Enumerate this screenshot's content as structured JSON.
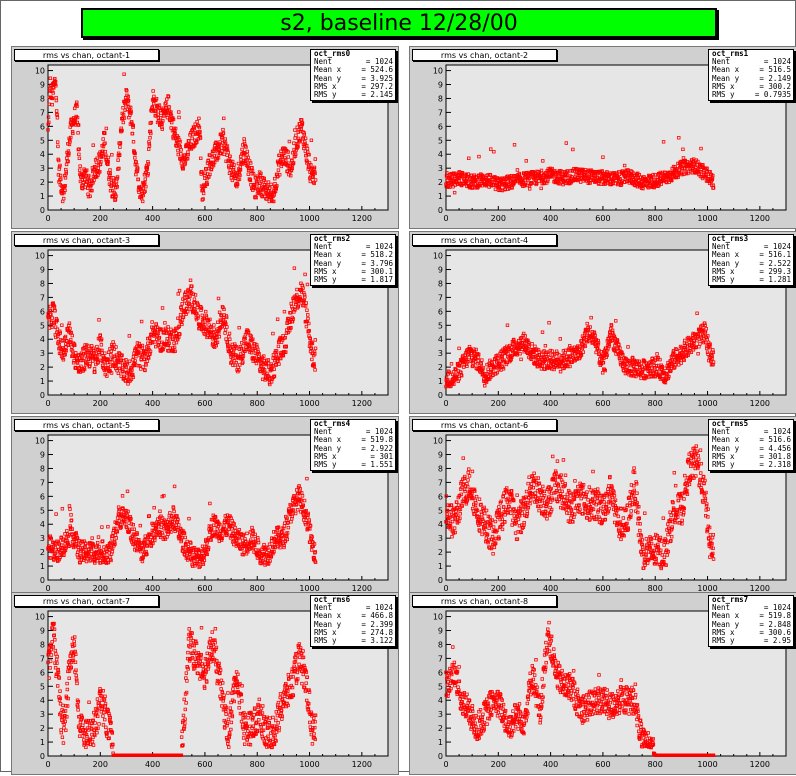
{
  "canvas_title": "s2, baseline 12/28/00",
  "marker_color": "#ff0000",
  "title_color": "#00ff00",
  "chart_data": [
    {
      "type": "scatter",
      "title": "rms vs chan, octant-1",
      "stats": {
        "name": "oct_rms0",
        "Nent": "1024",
        "Mean x": "524.6",
        "Mean y": "3.925",
        "RMS x": "297.2",
        "RMS y": "2.145"
      },
      "xlim": [
        0,
        1300
      ],
      "ylim": [
        0,
        10.4
      ],
      "xticks": [
        0,
        200,
        400,
        600,
        800,
        1000,
        1200
      ],
      "yticks": [
        0,
        1,
        2,
        3,
        4,
        5,
        6,
        7,
        8,
        9,
        10
      ],
      "anchors": [
        [
          0,
          5.5
        ],
        [
          8,
          9
        ],
        [
          15,
          8
        ],
        [
          30,
          9.5
        ],
        [
          40,
          3
        ],
        [
          60,
          1
        ],
        [
          75,
          4
        ],
        [
          90,
          6
        ],
        [
          110,
          7
        ],
        [
          125,
          2
        ],
        [
          140,
          2.5
        ],
        [
          160,
          1.5
        ],
        [
          180,
          3
        ],
        [
          200,
          3.5
        ],
        [
          215,
          5
        ],
        [
          240,
          2
        ],
        [
          260,
          1
        ],
        [
          280,
          6
        ],
        [
          300,
          8
        ],
        [
          320,
          6.5
        ],
        [
          340,
          2.5
        ],
        [
          360,
          1
        ],
        [
          380,
          3
        ],
        [
          400,
          8
        ],
        [
          420,
          7
        ],
        [
          440,
          6.5
        ],
        [
          460,
          7.5
        ],
        [
          490,
          5
        ],
        [
          520,
          3.5
        ],
        [
          550,
          5
        ],
        [
          580,
          6
        ],
        [
          590,
          1
        ],
        [
          610,
          3
        ],
        [
          640,
          4
        ],
        [
          670,
          5
        ],
        [
          700,
          3
        ],
        [
          720,
          2
        ],
        [
          750,
          4.5
        ],
        [
          770,
          3
        ],
        [
          790,
          1.5
        ],
        [
          810,
          2
        ],
        [
          830,
          1.5
        ],
        [
          860,
          1
        ],
        [
          880,
          3
        ],
        [
          900,
          4
        ],
        [
          930,
          3
        ],
        [
          950,
          5
        ],
        [
          970,
          6
        ],
        [
          990,
          4
        ],
        [
          1010,
          2
        ],
        [
          1024,
          3
        ]
      ],
      "noise": 0.8
    },
    {
      "type": "scatter",
      "title": "rms vs chan, octant-2",
      "stats": {
        "name": "oct_rms1",
        "Nent": "1024",
        "Mean x": "516.5",
        "Mean y": "2.149",
        "RMS x": "300.2",
        "RMS y": "0.7935"
      },
      "xlim": [
        0,
        1300
      ],
      "ylim": [
        0,
        10.4
      ],
      "xticks": [
        0,
        200,
        400,
        600,
        800,
        1000,
        1200
      ],
      "yticks": [
        0,
        1,
        2,
        3,
        4,
        5,
        6,
        7,
        8,
        9,
        10
      ],
      "anchors": [
        [
          0,
          2
        ],
        [
          50,
          2.3
        ],
        [
          100,
          2
        ],
        [
          150,
          2.2
        ],
        [
          200,
          1.8
        ],
        [
          250,
          2
        ],
        [
          300,
          2.2
        ],
        [
          350,
          2.3
        ],
        [
          400,
          2.5
        ],
        [
          450,
          2.3
        ],
        [
          500,
          2.5
        ],
        [
          550,
          2.4
        ],
        [
          600,
          2.3
        ],
        [
          650,
          2.2
        ],
        [
          700,
          2.4
        ],
        [
          750,
          2
        ],
        [
          800,
          2.1
        ],
        [
          850,
          2.4
        ],
        [
          900,
          3
        ],
        [
          950,
          3.2
        ],
        [
          1000,
          2.5
        ],
        [
          1024,
          2
        ]
      ],
      "noise": 0.5
    },
    {
      "type": "scatter",
      "title": "rms vs chan, octant-3",
      "stats": {
        "name": "oct_rms2",
        "Nent": "1024",
        "Mean x": "518.2",
        "Mean y": "3.796",
        "RMS x": "300.1",
        "RMS y": "1.817"
      },
      "xlim": [
        0,
        1300
      ],
      "ylim": [
        0,
        10.4
      ],
      "xticks": [
        0,
        200,
        400,
        600,
        800,
        1000,
        1200
      ],
      "yticks": [
        0,
        1,
        2,
        3,
        4,
        5,
        6,
        7,
        8,
        9,
        10
      ],
      "anchors": [
        [
          0,
          5
        ],
        [
          20,
          6
        ],
        [
          40,
          4
        ],
        [
          60,
          3
        ],
        [
          80,
          4.5
        ],
        [
          100,
          3
        ],
        [
          120,
          2
        ],
        [
          150,
          3
        ],
        [
          180,
          2.5
        ],
        [
          200,
          3.5
        ],
        [
          220,
          2
        ],
        [
          250,
          3
        ],
        [
          280,
          2
        ],
        [
          310,
          1.5
        ],
        [
          340,
          3
        ],
        [
          370,
          2.5
        ],
        [
          400,
          4.5
        ],
        [
          430,
          4
        ],
        [
          460,
          4
        ],
        [
          490,
          4
        ],
        [
          520,
          6.5
        ],
        [
          550,
          7
        ],
        [
          580,
          5.5
        ],
        [
          610,
          5
        ],
        [
          640,
          4
        ],
        [
          670,
          6
        ],
        [
          700,
          3
        ],
        [
          730,
          2.5
        ],
        [
          760,
          4
        ],
        [
          790,
          3
        ],
        [
          820,
          2
        ],
        [
          850,
          1.5
        ],
        [
          880,
          3
        ],
        [
          910,
          4
        ],
        [
          940,
          6.5
        ],
        [
          970,
          7.5
        ],
        [
          990,
          5.5
        ],
        [
          1010,
          3
        ],
        [
          1024,
          2.5
        ]
      ],
      "noise": 0.9
    },
    {
      "type": "scatter",
      "title": "rms vs chan, octant-4",
      "stats": {
        "name": "oct_rms3",
        "Nent": "1024",
        "Mean x": "516.1",
        "Mean y": "2.522",
        "RMS x": "299.3",
        "RMS y": "1.281"
      },
      "xlim": [
        0,
        1300
      ],
      "ylim": [
        0,
        10.4
      ],
      "xticks": [
        0,
        200,
        400,
        600,
        800,
        1000,
        1200
      ],
      "yticks": [
        0,
        1,
        2,
        3,
        4,
        5,
        6,
        7,
        8,
        9,
        10
      ],
      "anchors": [
        [
          0,
          1
        ],
        [
          30,
          1.2
        ],
        [
          60,
          2
        ],
        [
          90,
          3
        ],
        [
          120,
          2.5
        ],
        [
          150,
          1.5
        ],
        [
          180,
          2
        ],
        [
          210,
          2.5
        ],
        [
          240,
          3
        ],
        [
          270,
          3.5
        ],
        [
          300,
          3.8
        ],
        [
          330,
          3
        ],
        [
          360,
          2.5
        ],
        [
          390,
          2.5
        ],
        [
          420,
          2.5
        ],
        [
          450,
          2.5
        ],
        [
          480,
          2.8
        ],
        [
          510,
          3
        ],
        [
          540,
          4.5
        ],
        [
          570,
          4
        ],
        [
          600,
          2
        ],
        [
          630,
          4.5
        ],
        [
          660,
          3
        ],
        [
          690,
          2
        ],
        [
          720,
          2
        ],
        [
          750,
          1.8
        ],
        [
          780,
          2
        ],
        [
          810,
          2
        ],
        [
          840,
          1.5
        ],
        [
          870,
          2.5
        ],
        [
          900,
          3
        ],
        [
          930,
          3.5
        ],
        [
          960,
          4
        ],
        [
          990,
          4.5
        ],
        [
          1010,
          3
        ],
        [
          1024,
          2.5
        ]
      ],
      "noise": 0.7
    },
    {
      "type": "scatter",
      "title": "rms vs chan, octant-5",
      "stats": {
        "name": "oct_rms4",
        "Nent": "1024",
        "Mean x": "519.8",
        "Mean y": "2.922",
        "RMS x": "301",
        "RMS y": "1.551"
      },
      "xlim": [
        0,
        1300
      ],
      "ylim": [
        0,
        10.4
      ],
      "xticks": [
        0,
        200,
        400,
        600,
        800,
        1000,
        1200
      ],
      "yticks": [
        0,
        1,
        2,
        3,
        4,
        5,
        6,
        7,
        8,
        9,
        10
      ],
      "anchors": [
        [
          0,
          2.5
        ],
        [
          30,
          2
        ],
        [
          60,
          2.5
        ],
        [
          90,
          3.5
        ],
        [
          120,
          2
        ],
        [
          150,
          2
        ],
        [
          180,
          2
        ],
        [
          210,
          2
        ],
        [
          240,
          2
        ],
        [
          270,
          4.5
        ],
        [
          300,
          4.5
        ],
        [
          330,
          3
        ],
        [
          360,
          2
        ],
        [
          390,
          3
        ],
        [
          420,
          4
        ],
        [
          450,
          3.5
        ],
        [
          480,
          4.5
        ],
        [
          510,
          3
        ],
        [
          540,
          2
        ],
        [
          570,
          1.5
        ],
        [
          600,
          2
        ],
        [
          630,
          4
        ],
        [
          660,
          3.5
        ],
        [
          690,
          4
        ],
        [
          720,
          3
        ],
        [
          750,
          2.5
        ],
        [
          780,
          3
        ],
        [
          810,
          2
        ],
        [
          840,
          1.8
        ],
        [
          870,
          3
        ],
        [
          900,
          3
        ],
        [
          930,
          5
        ],
        [
          960,
          6
        ],
        [
          990,
          4.5
        ],
        [
          1010,
          2.5
        ],
        [
          1024,
          2
        ]
      ],
      "noise": 0.8
    },
    {
      "type": "scatter",
      "title": "rms vs chan, octant-6",
      "stats": {
        "name": "oct_rms5",
        "Nent": "1024",
        "Mean x": "516.6",
        "Mean y": "4.456",
        "RMS x": "301.8",
        "RMS y": "2.318"
      },
      "xlim": [
        0,
        1300
      ],
      "ylim": [
        0,
        10.4
      ],
      "xticks": [
        0,
        200,
        400,
        600,
        800,
        1000,
        1200
      ],
      "yticks": [
        0,
        1,
        2,
        3,
        4,
        5,
        6,
        7,
        8,
        9,
        10
      ],
      "anchors": [
        [
          0,
          5
        ],
        [
          30,
          4
        ],
        [
          60,
          6
        ],
        [
          90,
          7
        ],
        [
          120,
          5
        ],
        [
          150,
          4
        ],
        [
          180,
          3
        ],
        [
          210,
          4.5
        ],
        [
          240,
          6
        ],
        [
          270,
          4
        ],
        [
          300,
          5
        ],
        [
          330,
          7
        ],
        [
          360,
          6
        ],
        [
          390,
          5.5
        ],
        [
          420,
          7
        ],
        [
          450,
          6
        ],
        [
          480,
          5
        ],
        [
          510,
          6
        ],
        [
          540,
          5.5
        ],
        [
          570,
          5.5
        ],
        [
          600,
          5
        ],
        [
          630,
          6.5
        ],
        [
          660,
          4
        ],
        [
          690,
          4
        ],
        [
          720,
          7
        ],
        [
          750,
          2
        ],
        [
          780,
          2
        ],
        [
          810,
          2
        ],
        [
          840,
          2
        ],
        [
          870,
          5
        ],
        [
          900,
          5
        ],
        [
          930,
          8
        ],
        [
          960,
          8.5
        ],
        [
          990,
          6
        ],
        [
          1010,
          2.5
        ],
        [
          1024,
          2.2
        ]
      ],
      "noise": 1.2
    },
    {
      "type": "scatter",
      "title": "rms vs chan, octant-7",
      "stats": {
        "name": "oct_rms6",
        "Nent": "1024",
        "Mean x": "466.8",
        "Mean y": "2.399",
        "RMS x": "274.8",
        "RMS y": "3.122"
      },
      "xlim": [
        0,
        1300
      ],
      "ylim": [
        0,
        10.4
      ],
      "xticks": [
        0,
        200,
        400,
        600,
        800,
        1000,
        1200
      ],
      "yticks": [
        0,
        1,
        2,
        3,
        4,
        5,
        6,
        7,
        8,
        9,
        10
      ],
      "anchors": [
        [
          0,
          6
        ],
        [
          20,
          9
        ],
        [
          40,
          5
        ],
        [
          60,
          1
        ],
        [
          80,
          6
        ],
        [
          100,
          8
        ],
        [
          120,
          2
        ],
        [
          150,
          1.5
        ],
        [
          180,
          2
        ],
        [
          200,
          4
        ],
        [
          220,
          3
        ],
        [
          240,
          1.5
        ],
        [
          250,
          0.05
        ],
        [
          300,
          0.05
        ],
        [
          350,
          0.05
        ],
        [
          400,
          0.05
        ],
        [
          450,
          0.05
        ],
        [
          480,
          0.05
        ],
        [
          510,
          0.05
        ],
        [
          540,
          8
        ],
        [
          570,
          7
        ],
        [
          600,
          6
        ],
        [
          630,
          8
        ],
        [
          660,
          5
        ],
        [
          690,
          1.5
        ],
        [
          720,
          6
        ],
        [
          750,
          2
        ],
        [
          780,
          2
        ],
        [
          810,
          3
        ],
        [
          840,
          1.5
        ],
        [
          870,
          2
        ],
        [
          900,
          4
        ],
        [
          930,
          5
        ],
        [
          960,
          7
        ],
        [
          990,
          5
        ],
        [
          1010,
          2
        ],
        [
          1024,
          2
        ]
      ],
      "noise": 1.2
    },
    {
      "type": "scatter",
      "title": "rms vs chan, octant-8",
      "stats": {
        "name": "oct_rms7",
        "Nent": "1024",
        "Mean x": "519.8",
        "Mean y": "2.848",
        "RMS x": "300.6",
        "RMS y": "2.95"
      },
      "xlim": [
        0,
        1300
      ],
      "ylim": [
        0,
        10.4
      ],
      "xticks": [
        0,
        200,
        400,
        600,
        800,
        1000,
        1200
      ],
      "yticks": [
        0,
        1,
        2,
        3,
        4,
        5,
        6,
        7,
        8,
        9,
        10
      ],
      "anchors": [
        [
          0,
          5
        ],
        [
          30,
          6
        ],
        [
          60,
          4
        ],
        [
          90,
          3
        ],
        [
          120,
          2
        ],
        [
          150,
          3
        ],
        [
          180,
          4
        ],
        [
          210,
          3.5
        ],
        [
          240,
          2
        ],
        [
          270,
          3
        ],
        [
          300,
          2.5
        ],
        [
          330,
          6
        ],
        [
          360,
          3
        ],
        [
          390,
          9
        ],
        [
          420,
          6
        ],
        [
          450,
          5
        ],
        [
          480,
          5
        ],
        [
          510,
          3.5
        ],
        [
          540,
          3.5
        ],
        [
          570,
          4
        ],
        [
          600,
          4
        ],
        [
          630,
          3.5
        ],
        [
          660,
          4
        ],
        [
          690,
          4
        ],
        [
          720,
          4
        ],
        [
          750,
          1
        ],
        [
          770,
          0.8
        ],
        [
          800,
          0.05
        ],
        [
          850,
          0.05
        ],
        [
          900,
          0.05
        ],
        [
          950,
          0.05
        ],
        [
          1000,
          0.05
        ],
        [
          1024,
          0.05
        ]
      ],
      "noise": 1.0
    }
  ]
}
